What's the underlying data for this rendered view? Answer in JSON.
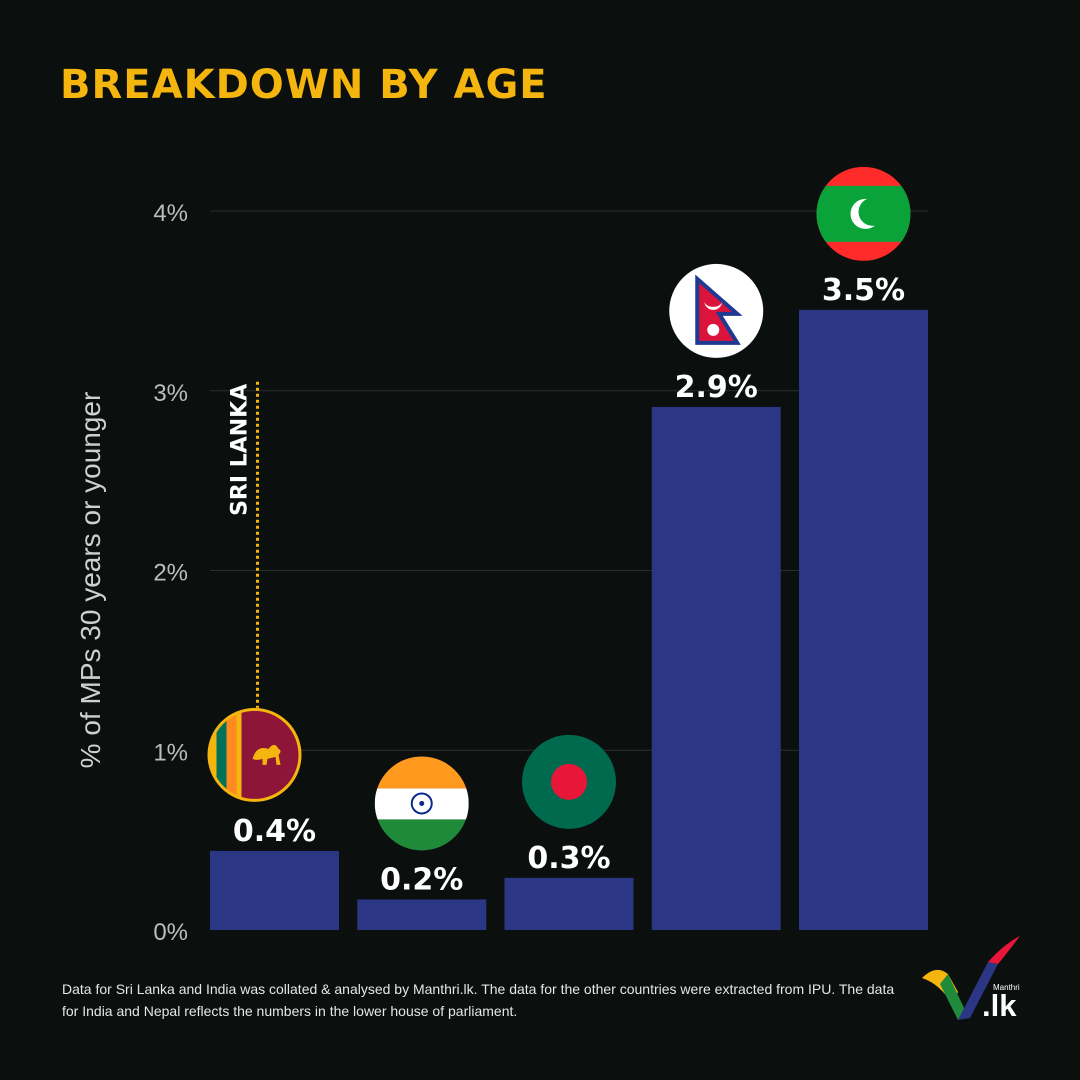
{
  "title": "BREAKDOWN BY AGE",
  "chart_data": {
    "type": "bar",
    "ylabel": "% of MPs 30 years or younger",
    "ylim": [
      0,
      4
    ],
    "yticks": [
      {
        "value": 0,
        "label": "0%"
      },
      {
        "value": 1,
        "label": "1%"
      },
      {
        "value": 2,
        "label": "2%"
      },
      {
        "value": 3,
        "label": "3%"
      },
      {
        "value": 4,
        "label": "4%"
      }
    ],
    "grid": true,
    "bar_color": "#2b3684",
    "categories": [
      "Sri Lanka",
      "India",
      "Bangladesh",
      "Nepal",
      "Maldives"
    ],
    "values": [
      0.44,
      0.17,
      0.29,
      2.91,
      3.45
    ],
    "data_labels": [
      "0.4%",
      "0.2%",
      "0.3%",
      "2.9%",
      "3.5%"
    ],
    "flag_icons": [
      "sri-lanka-flag-icon",
      "india-flag-icon",
      "bangladesh-flag-icon",
      "nepal-flag-icon",
      "maldives-flag-icon"
    ],
    "annotation": {
      "text": "SRI LANKA",
      "color": "#f5b50f"
    }
  },
  "footnote": "Data for Sri Lanka and India was collated & analysed by Manthri.lk. The data for the other countries were extracted from IPU.  The data for India and Nepal reflects the numbers in the lower house of parliament.",
  "logo": {
    "small_text": "Manthri",
    "big_text": ".lk"
  }
}
